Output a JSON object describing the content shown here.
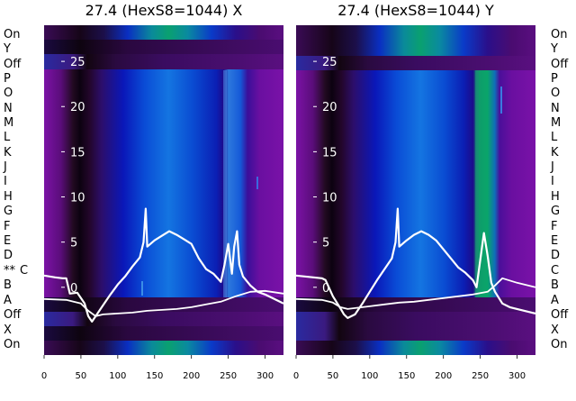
{
  "chart_data": [
    {
      "type": "heatmap",
      "title": "27.4 (HexS8=1044) X",
      "xlabel": "",
      "ylabel": "",
      "x_ticks": [
        0,
        50,
        100,
        150,
        200,
        250,
        300
      ],
      "xlim": [
        0,
        325
      ],
      "y_ticks": [
        0,
        5,
        10,
        15,
        20,
        25
      ],
      "ylim": [
        -7.5,
        29
      ],
      "row_labels": [
        "On",
        "Y",
        "Off",
        "P",
        "O",
        "N",
        "M",
        "L",
        "K",
        "J",
        "I",
        "H",
        "G",
        "F",
        "E",
        "D",
        "C",
        "B",
        "A",
        "Off",
        "X",
        "On"
      ],
      "row_marker": {
        "row": "C",
        "text": "**"
      },
      "traces": [
        {
          "x": [
            0,
            15,
            25,
            30,
            35,
            45,
            55,
            60,
            65,
            70,
            80,
            90,
            100,
            110,
            120,
            130,
            135,
            138,
            140,
            150,
            160,
            170,
            180,
            190,
            200,
            210,
            220,
            230,
            240,
            245,
            250,
            255,
            258,
            262,
            265,
            270,
            280,
            290,
            300,
            310,
            320,
            325
          ],
          "y": [
            1.3,
            1.1,
            1.0,
            1.0,
            -0.7,
            -0.6,
            -1.8,
            -3.2,
            -3.8,
            -3.2,
            -2.0,
            -0.8,
            0.3,
            1.2,
            2.3,
            3.3,
            5.0,
            8.7,
            4.5,
            5.2,
            5.7,
            6.2,
            5.8,
            5.3,
            4.8,
            3.2,
            2.0,
            1.5,
            0.6,
            2.5,
            4.8,
            1.5,
            4.5,
            6.2,
            2.5,
            1.2,
            0.2,
            -0.5,
            -0.8,
            -1.2,
            -1.6,
            -1.8
          ]
        },
        {
          "x": [
            0,
            30,
            40,
            50,
            60,
            70,
            80,
            100,
            120,
            140,
            160,
            180,
            200,
            220,
            240,
            260,
            280,
            300,
            325
          ],
          "y": [
            -1.3,
            -1.4,
            -1.6,
            -1.8,
            -2.6,
            -3.2,
            -3.0,
            -2.9,
            -2.8,
            -2.6,
            -2.5,
            -2.4,
            -2.2,
            -1.9,
            -1.6,
            -1.0,
            -0.5,
            -0.4,
            -0.7
          ]
        }
      ]
    },
    {
      "type": "heatmap",
      "title": "27.4 (HexS8=1044) Y",
      "xlabel": "",
      "ylabel": "",
      "x_ticks": [
        0,
        50,
        100,
        150,
        200,
        250,
        300
      ],
      "xlim": [
        0,
        325
      ],
      "y_ticks": [
        0,
        5,
        10,
        15,
        20,
        25
      ],
      "ylim": [
        -7.5,
        29
      ],
      "row_labels": [
        "On",
        "Y",
        "Off",
        "P",
        "O",
        "N",
        "M",
        "L",
        "K",
        "J",
        "I",
        "H",
        "G",
        "F",
        "E",
        "D",
        "C",
        "B",
        "A",
        "Off",
        "X",
        "On"
      ],
      "traces": [
        {
          "x": [
            0,
            35,
            40,
            50,
            60,
            65,
            70,
            80,
            90,
            100,
            110,
            120,
            130,
            135,
            138,
            140,
            150,
            160,
            170,
            180,
            190,
            200,
            210,
            220,
            230,
            240,
            245,
            250,
            255,
            260,
            265,
            270,
            280,
            290,
            300,
            310,
            320,
            325
          ],
          "y": [
            1.3,
            1.0,
            0.8,
            -1.0,
            -2.3,
            -3.0,
            -3.4,
            -3.0,
            -1.8,
            -0.5,
            0.8,
            2.0,
            3.2,
            5.0,
            8.7,
            4.5,
            5.2,
            5.8,
            6.2,
            5.8,
            5.2,
            4.2,
            3.2,
            2.2,
            1.6,
            0.8,
            0.0,
            3.0,
            6.0,
            3.5,
            0.5,
            -0.5,
            -1.8,
            -2.2,
            -2.4,
            -2.6,
            -2.8,
            -2.9
          ]
        },
        {
          "x": [
            0,
            35,
            50,
            60,
            70,
            80,
            100,
            120,
            140,
            160,
            180,
            200,
            220,
            240,
            260,
            270,
            280,
            300,
            325
          ],
          "y": [
            -1.3,
            -1.4,
            -1.7,
            -2.2,
            -2.4,
            -2.3,
            -2.1,
            -1.9,
            -1.7,
            -1.6,
            -1.4,
            -1.2,
            -1.0,
            -0.8,
            -0.5,
            0.2,
            1.0,
            0.5,
            0.0
          ]
        }
      ]
    }
  ]
}
